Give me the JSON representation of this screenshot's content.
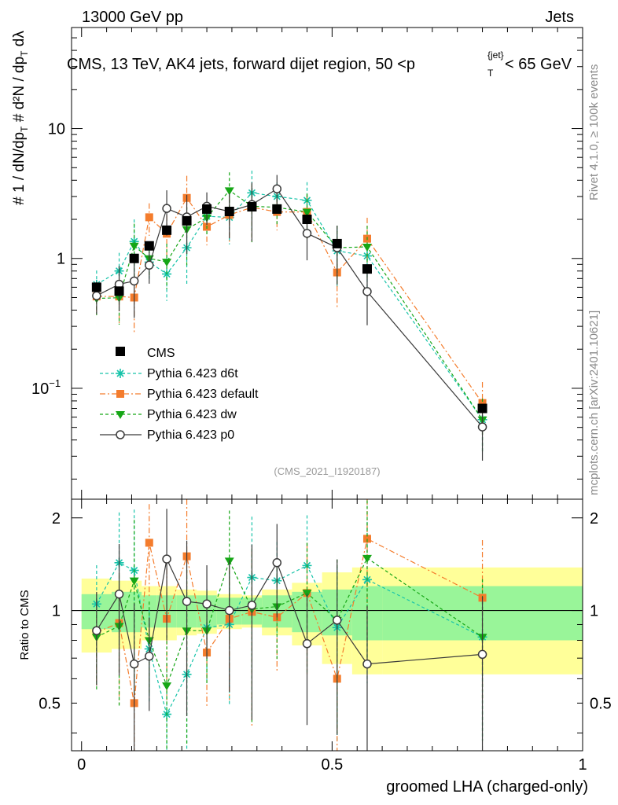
{
  "header": {
    "left": "13000 GeV pp",
    "right": "Jets"
  },
  "chart_data": {
    "type": "scatter",
    "title": "CMS, 13 TeV, AK4 jets, forward dijet region, 50 <",
    "title_ptjet": "p",
    "title_sub": "T",
    "title_sup": "{jet}",
    "title_end": "< 65 GeV",
    "analysis_id": "(CMS_2021_I1920187)",
    "side_label_top": "Rivet 4.1.0, ≥ 100k events",
    "side_label_bottom": "mcplots.cern.ch [arXiv:2401.10621]",
    "xlabel": "groomed LHA (charged-only)",
    "ylabel_main": "# 1 / dN/dpT # d²N / dpT dλ",
    "ylabel_ratio": "Ratio to CMS",
    "xlim": [
      -0.02,
      1.0
    ],
    "ylim_main": [
      0.014,
      60
    ],
    "ylim_ratio": [
      0.35,
      2.3
    ],
    "x_ticks": [
      "0",
      "0.5",
      "1"
    ],
    "y_ticks_main": [
      "10",
      "1"
    ],
    "y_tick_exp": "10",
    "y_tick_exp_power": "−1",
    "y_ticks_ratio": [
      "2",
      "1",
      "0.5"
    ],
    "data": {
      "name": "CMS",
      "x": [
        0.03,
        0.075,
        0.105,
        0.135,
        0.17,
        0.21,
        0.25,
        0.295,
        0.34,
        0.39,
        0.45,
        0.51,
        0.57,
        0.8
      ],
      "y": [
        0.6,
        0.56,
        1.0,
        1.25,
        1.65,
        1.95,
        2.4,
        2.3,
        2.5,
        2.4,
        2.0,
        1.3,
        0.83,
        0.07
      ],
      "band_inner": [
        0.13,
        0.15,
        0.15,
        0.12,
        0.12,
        0.12,
        0.12,
        0.1,
        0.1,
        0.12,
        0.15,
        0.17,
        0.2,
        0.2
      ],
      "band_outer": [
        0.27,
        0.25,
        0.25,
        0.2,
        0.2,
        0.17,
        0.16,
        0.13,
        0.12,
        0.17,
        0.23,
        0.33,
        0.38,
        0.38
      ],
      "bin_edges": [
        0.0,
        0.06,
        0.09,
        0.12,
        0.15,
        0.19,
        0.23,
        0.27,
        0.32,
        0.36,
        0.42,
        0.48,
        0.54,
        0.6,
        1.0
      ]
    },
    "series": [
      {
        "name": "Pythia 6.423 d6t",
        "color": "#17c3a9",
        "marker": "star",
        "dash": "4,3",
        "x": [
          0.03,
          0.075,
          0.105,
          0.135,
          0.17,
          0.21,
          0.25,
          0.295,
          0.34,
          0.39,
          0.45,
          0.51,
          0.57,
          0.8
        ],
        "ratio": [
          1.05,
          1.43,
          1.35,
          0.75,
          0.46,
          0.62,
          0.88,
          0.9,
          1.28,
          1.25,
          1.4,
          0.88,
          1.26,
          0.82
        ]
      },
      {
        "name": "Pythia 6.423 default",
        "color": "#f47c2c",
        "marker": "square",
        "dash": "7,3,2,3",
        "x": [
          0.03,
          0.075,
          0.105,
          0.135,
          0.17,
          0.21,
          0.25,
          0.295,
          0.34,
          0.39,
          0.45,
          0.51,
          0.57,
          0.8
        ],
        "ratio": [
          0.85,
          0.91,
          0.5,
          1.66,
          0.94,
          1.5,
          0.73,
          0.94,
          0.99,
          0.95,
          1.14,
          0.6,
          1.71,
          1.1
        ]
      },
      {
        "name": "Pythia 6.423 dw",
        "color": "#16a616",
        "marker": "triangle",
        "dash": "4,3",
        "x": [
          0.03,
          0.075,
          0.105,
          0.135,
          0.17,
          0.21,
          0.25,
          0.295,
          0.34,
          0.39,
          0.45,
          0.51,
          0.57,
          0.8
        ],
        "ratio": [
          0.82,
          0.89,
          1.25,
          0.8,
          0.57,
          0.86,
          0.86,
          1.45,
          1.01,
          1.03,
          1.14,
          0.93,
          1.48,
          0.82
        ]
      },
      {
        "name": "Pythia 6.423 p0",
        "color": "#3a3a3a",
        "marker": "circle",
        "dash": "",
        "x": [
          0.03,
          0.075,
          0.105,
          0.135,
          0.17,
          0.21,
          0.25,
          0.295,
          0.34,
          0.39,
          0.45,
          0.51,
          0.57,
          0.8
        ],
        "ratio": [
          0.86,
          1.13,
          0.67,
          0.71,
          1.47,
          1.07,
          1.05,
          1.0,
          1.04,
          1.43,
          0.78,
          0.93,
          0.67,
          0.72
        ]
      }
    ]
  }
}
